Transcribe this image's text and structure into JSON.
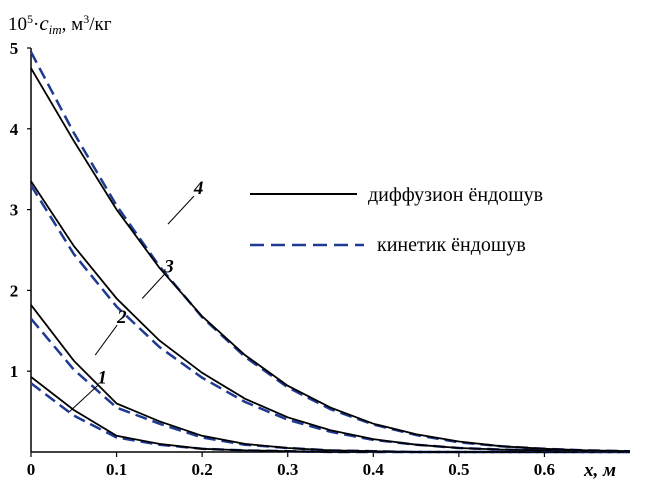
{
  "chart_data": {
    "type": "line",
    "ylabel_prefix": "10",
    "ylabel_exp": "5",
    "ylabel_dot": "·",
    "ylabel_var": "c",
    "ylabel_sub": "im",
    "ylabel_units": ", м",
    "ylabel_units_exp": "3",
    "ylabel_units_tail": "/кг",
    "xlabel": "x, м",
    "xlim": [
      0,
      0.7
    ],
    "ylim": [
      0,
      5
    ],
    "x_ticks": [
      "0",
      "0.1",
      "0.2",
      "0.3",
      "0.4",
      "0.5",
      "0.6"
    ],
    "x_tick_values": [
      0,
      0.1,
      0.2,
      0.3,
      0.4,
      0.5,
      0.6
    ],
    "y_ticks": [
      "1",
      "2",
      "3",
      "4",
      "5"
    ],
    "y_tick_values": [
      1,
      2,
      3,
      4,
      5
    ],
    "legend": {
      "placement": "right",
      "entries": [
        {
          "label": "диффузион ёндошув",
          "style": "solid",
          "color": "#000000"
        },
        {
          "label": "кинетик ёндошув",
          "style": "dashed",
          "color": "#1f3a93"
        }
      ]
    },
    "x": [
      0,
      0.05,
      0.1,
      0.15,
      0.2,
      0.25,
      0.3,
      0.35,
      0.4,
      0.45,
      0.5,
      0.55,
      0.6,
      0.65,
      0.7
    ],
    "series": [
      {
        "label": "1",
        "diffusion": [
          0.93,
          0.52,
          0.2,
          0.1,
          0.04,
          0.02,
          0.01,
          0.0,
          0.0,
          0.0,
          0.0,
          0.0,
          0.0,
          0.0,
          0.0
        ],
        "kinetic": [
          0.85,
          0.45,
          0.18,
          0.09,
          0.04,
          0.02,
          0.01,
          0.0,
          0.0,
          0.0,
          0.0,
          0.0,
          0.0,
          0.0,
          0.0
        ]
      },
      {
        "label": "2",
        "diffusion": [
          1.82,
          1.13,
          0.6,
          0.38,
          0.2,
          0.1,
          0.05,
          0.02,
          0.01,
          0.0,
          0.0,
          0.0,
          0.0,
          0.0,
          0.0
        ],
        "kinetic": [
          1.65,
          1.02,
          0.55,
          0.35,
          0.18,
          0.09,
          0.05,
          0.02,
          0.01,
          0.0,
          0.0,
          0.0,
          0.0,
          0.0,
          0.0
        ]
      },
      {
        "label": "3",
        "diffusion": [
          3.35,
          2.55,
          1.9,
          1.38,
          0.98,
          0.66,
          0.43,
          0.27,
          0.16,
          0.09,
          0.05,
          0.03,
          0.02,
          0.01,
          0.0
        ],
        "kinetic": [
          3.3,
          2.45,
          1.8,
          1.3,
          0.92,
          0.62,
          0.4,
          0.25,
          0.15,
          0.09,
          0.05,
          0.03,
          0.02,
          0.01,
          0.0
        ]
      },
      {
        "label": "4",
        "diffusion": [
          4.75,
          3.85,
          3.0,
          2.28,
          1.68,
          1.2,
          0.82,
          0.55,
          0.35,
          0.22,
          0.13,
          0.07,
          0.04,
          0.02,
          0.01
        ],
        "kinetic": [
          4.95,
          3.95,
          3.05,
          2.3,
          1.67,
          1.18,
          0.8,
          0.53,
          0.34,
          0.21,
          0.12,
          0.07,
          0.04,
          0.02,
          0.01
        ]
      }
    ]
  }
}
